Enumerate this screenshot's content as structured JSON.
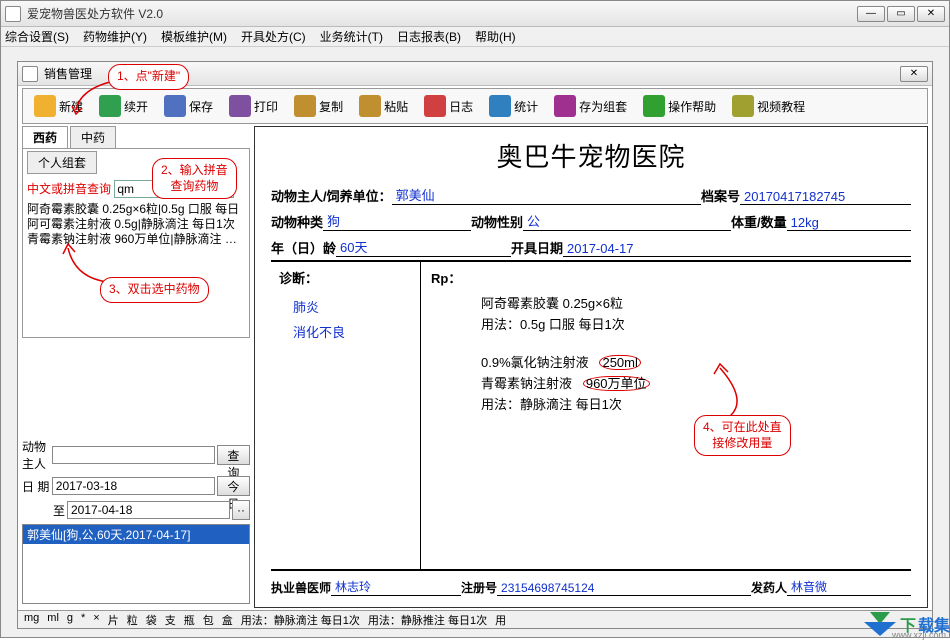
{
  "window": {
    "title": "爱宠物兽医处方软件 V2.0"
  },
  "menus": [
    "综合设置(S)",
    "药物维护(Y)",
    "模板维护(M)",
    "开具处方(C)",
    "业务统计(T)",
    "日志报表(B)",
    "帮助(H)"
  ],
  "inner": {
    "title": "销售管理"
  },
  "toolbar": [
    {
      "label": "新建",
      "icon": "#f0b030"
    },
    {
      "label": "续开",
      "icon": "#30a050"
    },
    {
      "label": "保存",
      "icon": "#5070c0"
    },
    {
      "label": "打印",
      "icon": "#8050a0"
    },
    {
      "label": "复制",
      "icon": "#c09030"
    },
    {
      "label": "粘贴",
      "icon": "#c09030"
    },
    {
      "label": "日志",
      "icon": "#d04040"
    },
    {
      "label": "统计",
      "icon": "#3080c0"
    },
    {
      "label": "存为组套",
      "icon": "#a03090"
    },
    {
      "label": "操作帮助",
      "icon": "#30a030"
    },
    {
      "label": "视频教程",
      "icon": "#a0a030"
    }
  ],
  "tabs": {
    "items": [
      "西药",
      "中药"
    ],
    "subtab": "个人组套"
  },
  "search": {
    "label": "中文或拼音查询",
    "value": "qm"
  },
  "drugs": [
    "阿奇霉素胶囊   0.25g×6粒|0.5g 口服 每日",
    "阿可霉素注射液   0.5g|静脉滴注  每日1次",
    "青霉素钠注射液   960万单位|静脉滴注  每日"
  ],
  "form": {
    "owner_label": "动物主人",
    "owner_value": "",
    "query_btn": "查  询",
    "date_label": "日    期",
    "date_value": "2017-03-18",
    "today_btn": "今 日",
    "to_label": "至",
    "to_value": "2017-04-18",
    "lookup_btn": "··",
    "selected": "郭美仙[狗,公,60天,2017-04-17]"
  },
  "rx": {
    "hospital": "奥巴牛宠物医院",
    "owner_label": "动物主人/饲养单位：",
    "owner": "郭美仙",
    "record_label": "档案号",
    "record": "20170417182745",
    "species_label": "动物种类",
    "species": "狗",
    "sex_label": "动物性别",
    "sex": "公",
    "weight_label": "体重/数量",
    "weight": "12kg",
    "age_label": "年（日）龄",
    "age": "60天",
    "issue_label": "开具日期",
    "issue": "2017-04-17",
    "diag_h": "诊断：",
    "diag": [
      "肺炎",
      "消化不良"
    ],
    "rp_h": "Rp：",
    "rp_lines": [
      "阿奇霉素胶囊   0.25g×6粒",
      "      用法：0.5g 口服 每日1次",
      "",
      "0.9%氯化钠注射液   250ml",
      "青霉素钠注射液   960万单位",
      "      用法：静脉滴注  每日1次"
    ],
    "vet_label": "执业兽医师",
    "vet": "林志玲",
    "reg_label": "注册号",
    "reg": "23154698745124",
    "dispenser_label": "发药人",
    "dispenser": "林音微"
  },
  "hints": {
    "h1": "1、点\"新建\"",
    "h2": "2、输入拼音\n查询药物",
    "h3": "3、双击选中药物",
    "h4": "4、可在此处直\n接修改用量"
  },
  "status": [
    "mg",
    "ml",
    "g",
    "*",
    "×",
    "片",
    "粒",
    "袋",
    "支",
    "瓶",
    "包",
    "盒",
    "用法：静脉滴注 每日1次",
    "用法：静脉推注 每日1次",
    "用"
  ],
  "watermark": "下载集"
}
